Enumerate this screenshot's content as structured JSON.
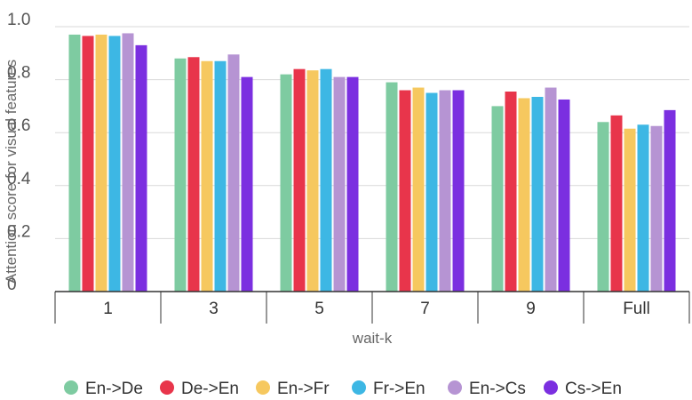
{
  "chart_data": {
    "type": "bar",
    "title": "",
    "xlabel": "wait-k",
    "ylabel": "Attention score for visual features",
    "categories": [
      "1",
      "3",
      "5",
      "7",
      "9",
      "Full"
    ],
    "ylim": [
      0,
      1.0
    ],
    "yticks": [
      "0",
      "0.2",
      "0.4",
      "0.6",
      "0.8",
      "1.0"
    ],
    "grid": true,
    "legend_position": "bottom",
    "series": [
      {
        "name": "En->De",
        "color": "#7ecba1",
        "values": [
          0.97,
          0.88,
          0.82,
          0.79,
          0.7,
          0.64
        ]
      },
      {
        "name": "De->En",
        "color": "#e8354b",
        "values": [
          0.965,
          0.885,
          0.84,
          0.76,
          0.755,
          0.665
        ]
      },
      {
        "name": "En->Fr",
        "color": "#f6c85f",
        "values": [
          0.97,
          0.87,
          0.835,
          0.77,
          0.73,
          0.615
        ]
      },
      {
        "name": "Fr->En",
        "color": "#3db7e4",
        "values": [
          0.965,
          0.87,
          0.84,
          0.75,
          0.735,
          0.63
        ]
      },
      {
        "name": "En->Cs",
        "color": "#b694d3",
        "values": [
          0.975,
          0.895,
          0.81,
          0.76,
          0.77,
          0.625
        ]
      },
      {
        "name": "Cs->En",
        "color": "#7b2fe0",
        "values": [
          0.93,
          0.81,
          0.81,
          0.76,
          0.725,
          0.685
        ]
      }
    ]
  }
}
